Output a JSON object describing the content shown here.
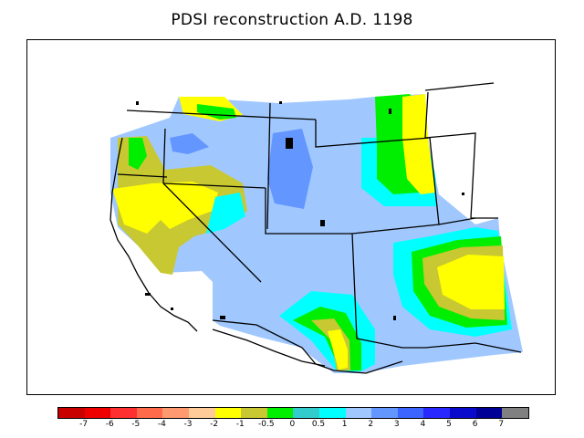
{
  "title": "PDSI reconstruction A.D. 1198",
  "colorbar": {
    "colors": [
      "#c80000",
      "#ee0000",
      "#ff3030",
      "#ff6a4a",
      "#ff9a70",
      "#ffcc99",
      "#ffff00",
      "#c8c832",
      "#00ee00",
      "#33cccc",
      "#00ffff",
      "#a0c8ff",
      "#6496ff",
      "#3c64ff",
      "#2828ff",
      "#0a0acd",
      "#000096",
      "#808080"
    ],
    "labels": [
      "-7",
      "-6",
      "-5",
      "-4",
      "-3",
      "-2",
      "-1",
      "-0.5",
      "0",
      "0.5",
      "1",
      "2",
      "3",
      "4",
      "5",
      "6",
      "7"
    ]
  },
  "map": {
    "field_color": "#a0c8ff",
    "outline_color": "#000000"
  }
}
